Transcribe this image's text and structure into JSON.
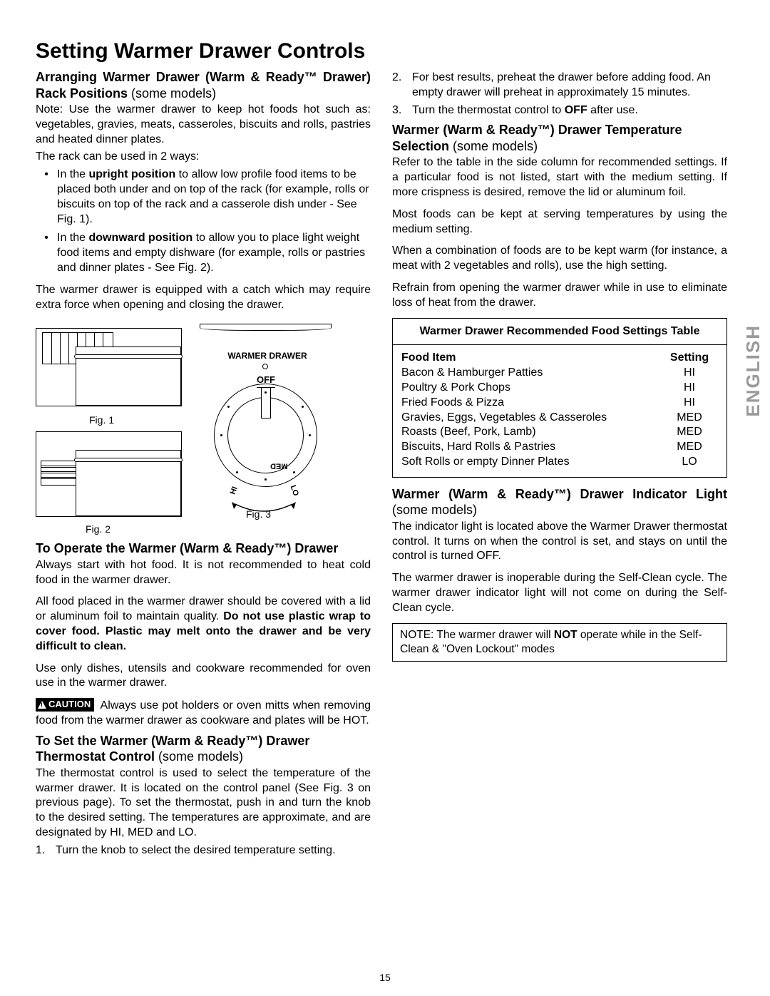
{
  "page": {
    "title": "Setting Warmer Drawer Controls",
    "number": "15",
    "side_label": "ENGLISH"
  },
  "left": {
    "h_rack_a": "Arranging Warmer Drawer (Warm & Ready™ Drawer) Rack Positions ",
    "h_rack_b": "(some models)",
    "note": "Note: Use the warmer drawer to keep hot foods hot such as: vegetables, gravies, meats, casseroles, biscuits and rolls, pastries and heated dinner plates.",
    "rack_intro": "The rack can be used in 2 ways:",
    "b1a": "In the ",
    "b1b": "upright position",
    "b1c": " to allow low profile food items to be placed both under and on top of the rack (for example, rolls or biscuits on top of the rack and a casserole dish under - See Fig. 1).",
    "b2a": "In the ",
    "b2b": "downward position",
    "b2c": " to allow you to place light weight food items and empty dishware (for example, rolls or pastries and dinner plates - See Fig. 2).",
    "catch": "The warmer drawer is equipped with a catch which may require extra force when opening and closing the drawer.",
    "fig1": "Fig. 1",
    "fig2": "Fig. 2",
    "fig3": "Fig. 3",
    "knob_title": "WARMER DRAWER",
    "knob_off": "OFF",
    "knob_lo": "LO",
    "knob_med": "MED",
    "knob_hi": "HI",
    "h_op": "To Operate the Warmer (Warm & Ready™) Drawer",
    "op1": "Always start with hot food. It is not recommended to heat cold food in the warmer drawer.",
    "op2a": "All food placed in the warmer drawer should be covered with a lid or aluminum foil to maintain quality. ",
    "op2b": "Do not use plastic wrap to cover food. Plastic may melt onto the drawer and be very difficult to clean.",
    "op3": "Use only dishes, utensils and cookware recommended for oven use in the warmer drawer.",
    "caution_label": "CAUTION",
    "caution_text": " Always use pot holders or oven mitts when removing food from the warmer drawer as cookware and plates will be HOT.",
    "h_therm_a": "To Set the Warmer (Warm & Ready™) Drawer Thermostat Control ",
    "h_therm_b": "(some models)",
    "therm_p": "The thermostat control is used to select the temperature of the warmer drawer. It is located on the control panel (See Fig. 3 on previous page). To set the thermostat, push in and turn the knob to the desired setting. The temperatures are approximate, and are designated by HI, MED and LO.",
    "step1": "Turn the knob to select the desired temperature setting."
  },
  "right": {
    "step2": "For best results, preheat the drawer before adding food. An empty drawer will preheat in approximately 15 minutes.",
    "step3a": "Turn the thermostat control to ",
    "step3b": "OFF",
    "step3c": " after use.",
    "h_temp_a": "Warmer (Warm & Ready™) Drawer Temperature Selection ",
    "h_temp_b": "(some models)",
    "temp_p1": "Refer to the table in the side column for recommended settings. If a particular food is not listed, start with the medium setting. If more crispness is desired, remove the lid or aluminum foil.",
    "temp_p2": "Most foods can be kept at serving temperatures by using the medium setting.",
    "temp_p3": "When a combination of foods are to be kept warm (for instance, a meat with 2 vegetables and rolls), use the high setting.",
    "temp_p4": "Refrain from opening the warmer drawer while in use to eliminate loss of heat from the drawer.",
    "table": {
      "title": "Warmer Drawer Recommended Food Settings Table",
      "col1": "Food Item",
      "col2": "Setting",
      "rows": [
        {
          "f": "Bacon & Hamburger Patties",
          "s": "HI"
        },
        {
          "f": "Poultry & Pork Chops",
          "s": "HI"
        },
        {
          "f": "Fried Foods & Pizza",
          "s": "HI"
        },
        {
          "f": "Gravies, Eggs, Vegetables & Casseroles",
          "s": "MED"
        },
        {
          "f": "Roasts (Beef, Pork, Lamb)",
          "s": "MED"
        },
        {
          "f": "Biscuits, Hard Rolls & Pastries",
          "s": "MED"
        },
        {
          "f": "Soft Rolls or empty Dinner Plates",
          "s": "LO"
        }
      ]
    },
    "h_ind_a": "Warmer (Warm & Ready™) Drawer Indicator Light ",
    "h_ind_b": "(some models)",
    "ind_p1": "The indicator light is located above the Warmer Drawer thermostat control. It turns on when the control is set, and stays on until the control is turned OFF.",
    "ind_p2": "The warmer drawer is inoperable during the Self-Clean cycle. The warmer drawer indicator light will not come on during the Self-Clean cycle.",
    "note_a": "NOTE: The warmer drawer will ",
    "note_b": "NOT",
    "note_c": " operate while in the Self-Clean & \"Oven Lockout\" modes"
  }
}
